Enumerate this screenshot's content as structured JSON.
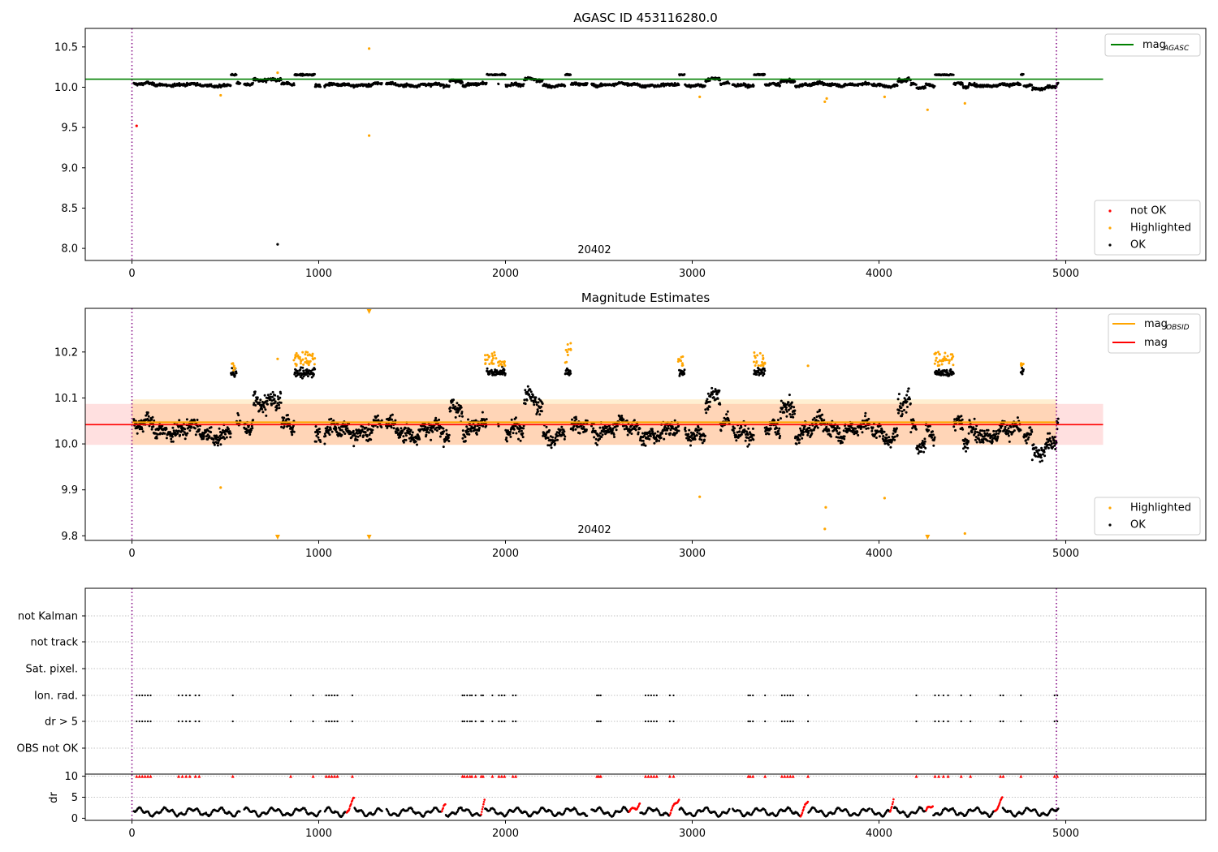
{
  "figure": {
    "title": "AGASC ID 453116280.0",
    "obsid_label": "20402"
  },
  "colors": {
    "ok": "#000000",
    "highlighted": "#FFA500",
    "not_ok": "#FF0000",
    "mag_agasc": "#008000",
    "mag_obsid": "#FFA500",
    "mag": "#FF0000",
    "obsid_boundary": "#800080",
    "grid": "#b0b0b0"
  },
  "chart_data": [
    {
      "id": "agasc-panel",
      "type": "scatter",
      "title": "AGASC ID 453116280.0",
      "xlim": [
        -250,
        5750
      ],
      "ylim": [
        7.85,
        10.73
      ],
      "xticks": [
        0,
        1000,
        2000,
        3000,
        4000,
        5000
      ],
      "yticks": [
        8.0,
        8.5,
        9.0,
        9.5,
        10.0,
        10.5
      ],
      "obsid_boundaries": [
        0,
        4950
      ],
      "obsid_label": "20402",
      "legend_top": {
        "placement": "upper right",
        "entries": [
          {
            "label": "mag",
            "sub": "AGASC",
            "kind": "line",
            "color": "#008000"
          }
        ]
      },
      "legend_bottom": {
        "placement": "lower right",
        "entries": [
          {
            "label": "not OK",
            "kind": "dot",
            "color": "#FF0000"
          },
          {
            "label": "Highlighted",
            "kind": "dot",
            "color": "#FFA500"
          },
          {
            "label": "OK",
            "kind": "dot",
            "color": "#000000"
          }
        ]
      },
      "mag_agasc": {
        "value": 10.1,
        "x_range": [
          -250,
          5200
        ]
      },
      "outliers": [
        {
          "x": 25,
          "y": 9.52,
          "status": "not_ok"
        },
        {
          "x": 475,
          "y": 9.9,
          "status": "highlighted"
        },
        {
          "x": 780,
          "y": 8.05,
          "status": "ok"
        },
        {
          "x": 780,
          "y": 10.18,
          "status": "highlighted"
        },
        {
          "x": 1270,
          "y": 10.48,
          "status": "highlighted"
        },
        {
          "x": 1270,
          "y": 9.4,
          "status": "highlighted"
        },
        {
          "x": 3040,
          "y": 9.88,
          "status": "highlighted"
        },
        {
          "x": 3710,
          "y": 9.82,
          "status": "highlighted"
        },
        {
          "x": 3720,
          "y": 9.86,
          "status": "highlighted"
        },
        {
          "x": 4030,
          "y": 9.88,
          "status": "highlighted"
        },
        {
          "x": 4260,
          "y": 9.72,
          "status": "highlighted"
        },
        {
          "x": 4460,
          "y": 9.8,
          "status": "highlighted"
        }
      ]
    },
    {
      "id": "estimates-panel",
      "type": "scatter",
      "title": "Magnitude Estimates",
      "xlim": [
        -250,
        5750
      ],
      "ylim": [
        9.79,
        10.295
      ],
      "xticks": [
        0,
        1000,
        2000,
        3000,
        4000,
        5000
      ],
      "yticks": [
        9.8,
        9.9,
        10.0,
        10.1,
        10.2
      ],
      "obsid_boundaries": [
        0,
        4950
      ],
      "obsid_label": "20402",
      "legend_top": {
        "placement": "upper right",
        "entries": [
          {
            "label": "mag",
            "sub": "OBSID",
            "kind": "line",
            "color": "#FFA500"
          },
          {
            "label": "mag",
            "kind": "line",
            "color": "#FF0000"
          }
        ]
      },
      "legend_bottom": {
        "placement": "lower right",
        "entries": [
          {
            "label": "Highlighted",
            "kind": "dot",
            "color": "#FFA500"
          },
          {
            "label": "OK",
            "kind": "dot",
            "color": "#000000"
          }
        ]
      },
      "mag_obsid": {
        "value": 10.047,
        "band": [
          9.998,
          10.097
        ],
        "x_range": [
          0,
          4950
        ]
      },
      "mag": {
        "value": 10.042,
        "band": [
          9.998,
          10.087
        ],
        "x_range": [
          -250,
          5200
        ]
      },
      "highlight_clusters": [
        {
          "x": [
            535,
            555
          ],
          "y": [
            10.16,
            10.18
          ]
        },
        {
          "x": [
            860,
            980
          ],
          "y": [
            10.17,
            10.2
          ]
        },
        {
          "x": [
            1890,
            1950
          ],
          "y": [
            10.17,
            10.2
          ]
        },
        {
          "x": [
            1960,
            2000
          ],
          "y": [
            10.17,
            10.18
          ]
        },
        {
          "x": [
            2320,
            2350
          ],
          "y": [
            10.17,
            10.22
          ]
        },
        {
          "x": [
            2920,
            2950
          ],
          "y": [
            10.17,
            10.19
          ]
        },
        {
          "x": [
            3330,
            3390
          ],
          "y": [
            10.17,
            10.2
          ]
        },
        {
          "x": [
            4290,
            4400
          ],
          "y": [
            10.17,
            10.2
          ]
        },
        {
          "x": [
            4760,
            4775
          ],
          "y": [
            10.17,
            10.18
          ]
        }
      ],
      "outliers": [
        {
          "x": 475,
          "y": 9.905,
          "status": "highlighted"
        },
        {
          "x": 780,
          "y": 10.185,
          "status": "highlighted"
        },
        {
          "x": 3040,
          "y": 9.885,
          "status": "highlighted"
        },
        {
          "x": 3620,
          "y": 10.17,
          "status": "highlighted"
        },
        {
          "x": 3715,
          "y": 9.862,
          "status": "highlighted"
        },
        {
          "x": 3710,
          "y": 9.815,
          "status": "highlighted"
        },
        {
          "x": 4030,
          "y": 9.882,
          "status": "highlighted"
        },
        {
          "x": 4460,
          "y": 9.805,
          "status": "highlighted"
        }
      ],
      "off_scale_markers": [
        {
          "x": 780,
          "edge": "bottom"
        },
        {
          "x": 1270,
          "edge": "bottom"
        },
        {
          "x": 1270,
          "edge": "top"
        },
        {
          "x": 4260,
          "edge": "bottom"
        }
      ]
    },
    {
      "id": "flags-panel",
      "type": "scatter",
      "xlim": [
        -250,
        5750
      ],
      "xticks": [
        0,
        1000,
        2000,
        3000,
        4000,
        5000
      ],
      "flag_rows": [
        "not Kalman",
        "not track",
        "Sat. pixel.",
        "Ion. rad.",
        "dr > 5",
        "OBS not OK"
      ],
      "obsid_boundaries": [
        0,
        4950
      ],
      "flag_positions_x": [
        25,
        40,
        55,
        70,
        85,
        100,
        250,
        270,
        290,
        310,
        340,
        360,
        540,
        850,
        970,
        1040,
        1055,
        1070,
        1085,
        1100,
        1180,
        1770,
        1780,
        1795,
        1810,
        1820,
        1840,
        1870,
        1880,
        1930,
        1965,
        1980,
        1995,
        2040,
        2055,
        2490,
        2500,
        2510,
        2750,
        2765,
        2780,
        2795,
        2810,
        2880,
        2900,
        3300,
        3310,
        3325,
        3390,
        3480,
        3495,
        3510,
        3525,
        3540,
        3620,
        4200,
        4300,
        4320,
        4345,
        4370,
        4440,
        4490,
        4650,
        4665,
        4760,
        4940,
        4955
      ],
      "dr_panel": {
        "ylabel": "dr",
        "ylim": [
          -0.5,
          10.5
        ],
        "yticks": [
          0,
          5,
          10
        ],
        "red_segments": [
          [
            1150,
            1190
          ],
          [
            2660,
            2720
          ],
          [
            2880,
            2930
          ],
          [
            3580,
            3620
          ],
          [
            4250,
            4290
          ],
          [
            4620,
            4660
          ],
          [
            1660,
            1680
          ],
          [
            1870,
            1890
          ],
          [
            4060,
            4080
          ]
        ]
      }
    }
  ]
}
